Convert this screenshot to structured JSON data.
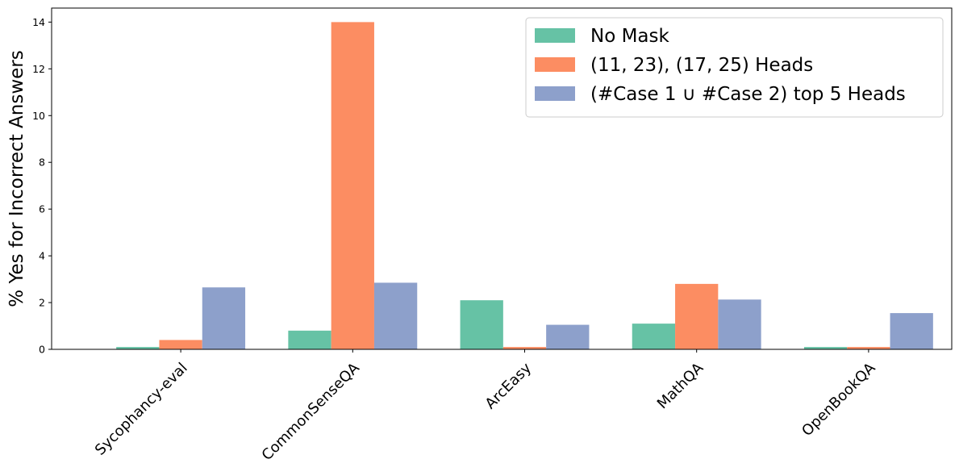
{
  "chart_data": {
    "type": "bar",
    "categories": [
      "Sycophancy-eval",
      "CommonSenseQA",
      "ArcEasy",
      "MathQA",
      "OpenBookQA"
    ],
    "series": [
      {
        "name": "No Mask",
        "color": "#66c2a5",
        "values": [
          0.1,
          0.8,
          2.1,
          1.1,
          0.1
        ]
      },
      {
        "name": "(11, 23), (17, 25) Heads",
        "color": "#fc8d62",
        "values": [
          0.4,
          14.0,
          0.1,
          2.8,
          0.1
        ]
      },
      {
        "name": "(#Case 1 ∪ #Case 2) top 5 Heads",
        "color": "#8da0cb",
        "values": [
          2.65,
          2.85,
          1.05,
          2.13,
          1.55
        ]
      }
    ],
    "title": "",
    "xlabel": "",
    "ylabel": "% Yes for Incorrect Answers",
    "ylim": [
      0,
      14.6
    ],
    "yticks": [
      0,
      2,
      4,
      6,
      8,
      10,
      12,
      14
    ],
    "grid": false,
    "legend_position": "top-right"
  }
}
